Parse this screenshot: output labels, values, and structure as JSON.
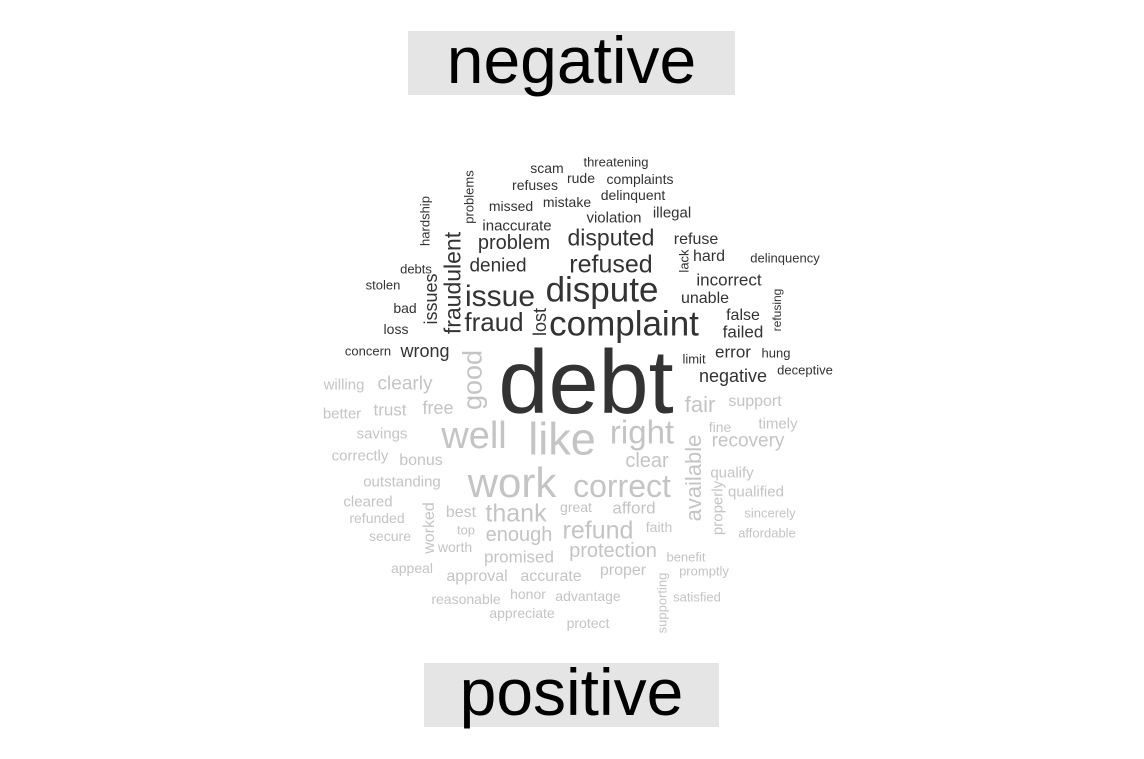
{
  "chart_data": {
    "type": "wordcloud",
    "colors": {
      "negative": "#333333",
      "positive": "#c4c4c4"
    },
    "groups": [
      {
        "name": "negative",
        "words": [
          "debt",
          "complaint",
          "dispute",
          "issue",
          "fraud",
          "refused",
          "disputed",
          "problem",
          "fraudulent",
          "denied",
          "wrong",
          "lost",
          "issues",
          "incorrect",
          "unable",
          "failed",
          "error",
          "negative",
          "false",
          "hard",
          "refuse",
          "violation",
          "illegal",
          "inaccurate",
          "missed",
          "mistake",
          "delinquent",
          "complaints",
          "rude",
          "refuses",
          "scam",
          "threatening",
          "problems",
          "hardship",
          "lack",
          "debts",
          "stolen",
          "bad",
          "loss",
          "concern",
          "limit",
          "hung",
          "deceptive",
          "delinquency",
          "refusing"
        ]
      },
      {
        "name": "positive",
        "words": [
          "like",
          "work",
          "well",
          "correct",
          "right",
          "thank",
          "refund",
          "good",
          "available",
          "fair",
          "clear",
          "enough",
          "protection",
          "recovery",
          "promised",
          "accurate",
          "approval",
          "afford",
          "clearly",
          "trust",
          "free",
          "bonus",
          "outstanding",
          "worked",
          "best",
          "proper",
          "support",
          "qualify",
          "timely",
          "qualified",
          "properly",
          "savings",
          "better",
          "willing",
          "correctly",
          "cleared",
          "refunded",
          "secure",
          "great",
          "top",
          "worth",
          "faith",
          "fine",
          "benefit",
          "promptly",
          "sincerely",
          "affordable",
          "appeal",
          "reasonable",
          "honor",
          "advantage",
          "satisfied",
          "appreciate",
          "protect",
          "supporting"
        ]
      }
    ]
  }
}
